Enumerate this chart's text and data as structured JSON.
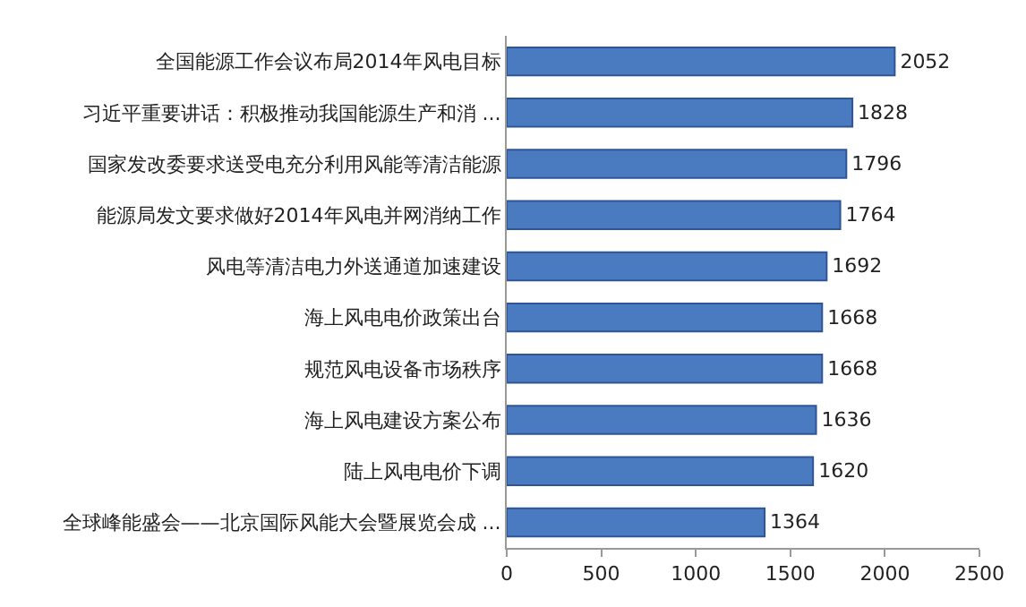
{
  "chart_data": {
    "type": "bar",
    "orientation": "horizontal",
    "categories": [
      "全国能源工作会议布局2014年风电目标",
      "习近平重要讲话：积极推动我国能源生产和消 ...",
      "国家发改委要求送受电充分利用风能等清洁能源",
      "能源局发文要求做好2014年风电并网消纳工作",
      "风电等清洁电力外送通道加速建设",
      "海上风电电价政策出台",
      "规范风电设备市场秩序",
      "海上风电建设方案公布",
      "陆上风电电价下调",
      "全球峰能盛会——北京国际风能大会暨展览会成 ..."
    ],
    "values": [
      2052,
      1828,
      1796,
      1764,
      1692,
      1668,
      1668,
      1636,
      1620,
      1364
    ],
    "color": "#4a7bc0",
    "xlim": [
      0,
      2500
    ],
    "xticks": [
      0,
      500,
      1000,
      1500,
      2000,
      2500
    ],
    "data_labels": true
  }
}
